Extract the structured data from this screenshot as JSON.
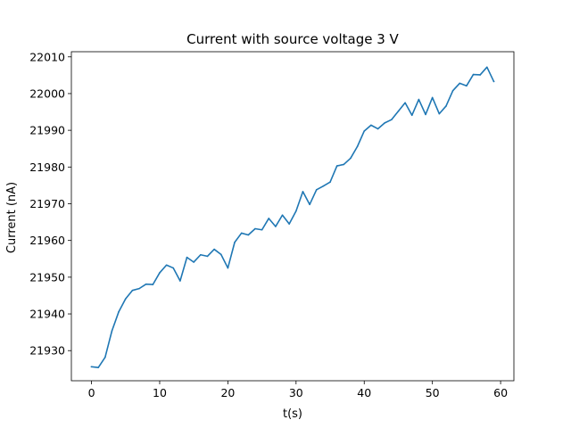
{
  "chart_data": {
    "type": "line",
    "title": "Current with source voltage 3 V",
    "xlabel": "t(s)",
    "ylabel": "Current (nA)",
    "xlim": [
      -2.95,
      61.95
    ],
    "ylim": [
      21921.8,
      22011.4
    ],
    "xticks": [
      0,
      10,
      20,
      30,
      40,
      50,
      60
    ],
    "yticks": [
      21930,
      21940,
      21950,
      21960,
      21970,
      21980,
      21990,
      22000,
      22010
    ],
    "grid": false,
    "series": [
      {
        "name": "Current",
        "color": "#1f77b4",
        "x": [
          0,
          1,
          2,
          3,
          4,
          5,
          6,
          7,
          8,
          9,
          10,
          11,
          12,
          13,
          14,
          15,
          16,
          17,
          18,
          19,
          20,
          21,
          22,
          23,
          24,
          25,
          26,
          27,
          28,
          29,
          30,
          31,
          32,
          33,
          34,
          35,
          36,
          37,
          38,
          39,
          40,
          41,
          42,
          43,
          44,
          45,
          46,
          47,
          48,
          49,
          50,
          51,
          52,
          53,
          54,
          55,
          56,
          57,
          58,
          59
        ],
        "y": [
          21925.6,
          21925.4,
          21928.2,
          21935.4,
          21940.6,
          21944.1,
          21946.4,
          21946.9,
          21948.1,
          21948.0,
          21951.2,
          21953.3,
          21952.5,
          21949.0,
          21955.4,
          21954.1,
          21956.1,
          21955.7,
          21957.6,
          21956.2,
          21952.5,
          21959.5,
          21962.0,
          21961.5,
          21963.2,
          21962.9,
          21966.0,
          21963.8,
          21966.9,
          21964.5,
          21968.0,
          21973.3,
          21969.8,
          21973.8,
          21974.8,
          21975.9,
          21980.3,
          21980.7,
          21982.4,
          21985.6,
          21989.8,
          21991.4,
          21990.4,
          21992.0,
          21992.9,
          21995.2,
          21997.5,
          21994.1,
          21998.4,
          21994.3,
          21998.9,
          21994.5,
          21996.6,
          22000.8,
          22002.8,
          22002.1,
          22005.2,
          22005.1,
          22007.2,
          22003.3
        ]
      }
    ]
  }
}
